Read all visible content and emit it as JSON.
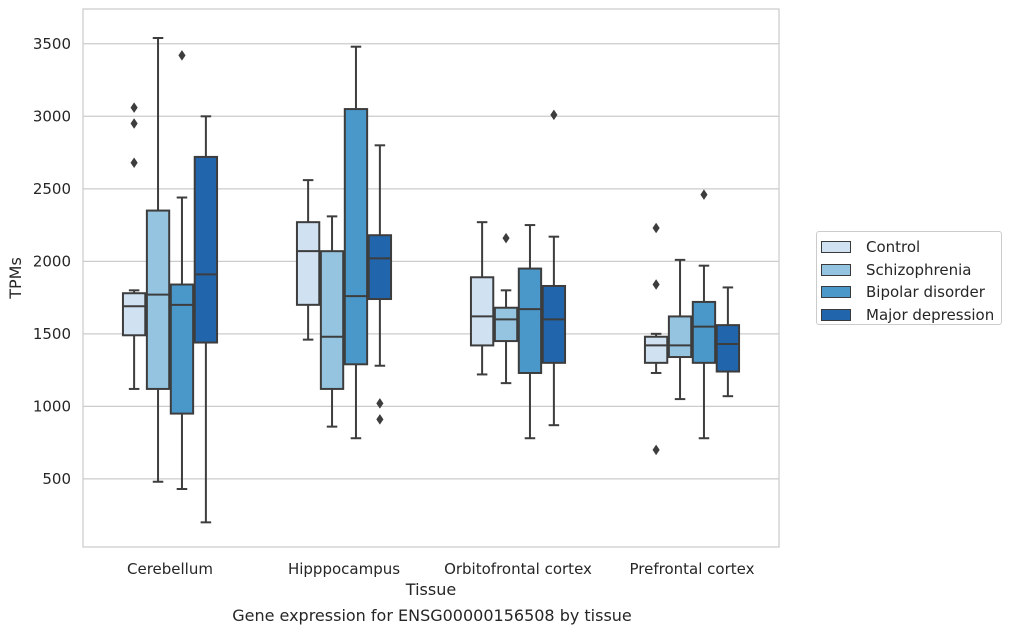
{
  "caption": "Gene expression for ENSG00000156508 by tissue",
  "chart_data": {
    "type": "boxplot",
    "xlabel": "Tissue",
    "ylabel": "TPMs",
    "ylim": [
      30,
      3740
    ],
    "yticks": [
      500,
      1000,
      1500,
      2000,
      2500,
      3000,
      3500
    ],
    "grid": "horizontal",
    "legend_position": "right-outside",
    "categories": [
      "Cerebellum",
      "Hipppocampus",
      "Orbitofrontal cortex",
      "Prefrontal cortex"
    ],
    "series": [
      {
        "name": "Control",
        "color": "#d0e1f2",
        "boxes": [
          {
            "whislo": 1120,
            "q1": 1490,
            "med": 1690,
            "q3": 1780,
            "whishi": 1800,
            "fliers": [
              2680,
              2950,
              3060
            ]
          },
          {
            "whislo": 1460,
            "q1": 1700,
            "med": 2070,
            "q3": 2270,
            "whishi": 2560,
            "fliers": []
          },
          {
            "whislo": 1220,
            "q1": 1420,
            "med": 1620,
            "q3": 1890,
            "whishi": 2270,
            "fliers": []
          },
          {
            "whislo": 1230,
            "q1": 1300,
            "med": 1420,
            "q3": 1480,
            "whishi": 1500,
            "fliers": [
              700,
              1840,
              2230
            ]
          }
        ]
      },
      {
        "name": "Schizophrenia",
        "color": "#94c4df",
        "boxes": [
          {
            "whislo": 480,
            "q1": 1120,
            "med": 1770,
            "q3": 2350,
            "whishi": 3540,
            "fliers": []
          },
          {
            "whislo": 860,
            "q1": 1120,
            "med": 1480,
            "q3": 2070,
            "whishi": 2310,
            "fliers": []
          },
          {
            "whislo": 1160,
            "q1": 1450,
            "med": 1600,
            "q3": 1680,
            "whishi": 1800,
            "fliers": [
              2160
            ]
          },
          {
            "whislo": 1050,
            "q1": 1340,
            "med": 1420,
            "q3": 1620,
            "whishi": 2010,
            "fliers": []
          }
        ]
      },
      {
        "name": "Bipolar disorder",
        "color": "#4a98c9",
        "boxes": [
          {
            "whislo": 430,
            "q1": 950,
            "med": 1700,
            "q3": 1840,
            "whishi": 2440,
            "fliers": [
              3420
            ]
          },
          {
            "whislo": 780,
            "q1": 1290,
            "med": 1760,
            "q3": 3050,
            "whishi": 3480,
            "fliers": []
          },
          {
            "whislo": 780,
            "q1": 1230,
            "med": 1670,
            "q3": 1950,
            "whishi": 2250,
            "fliers": []
          },
          {
            "whislo": 780,
            "q1": 1300,
            "med": 1550,
            "q3": 1720,
            "whishi": 1970,
            "fliers": [
              2460
            ]
          }
        ]
      },
      {
        "name": "Major depression",
        "color": "#2166ac",
        "boxes": [
          {
            "whislo": 200,
            "q1": 1440,
            "med": 1910,
            "q3": 2720,
            "whishi": 3000,
            "fliers": []
          },
          {
            "whislo": 1280,
            "q1": 1740,
            "med": 2020,
            "q3": 2180,
            "whishi": 2800,
            "fliers": [
              910,
              1020
            ]
          },
          {
            "whislo": 870,
            "q1": 1300,
            "med": 1600,
            "q3": 1830,
            "whishi": 2170,
            "fliers": [
              3010
            ]
          },
          {
            "whislo": 1070,
            "q1": 1240,
            "med": 1430,
            "q3": 1560,
            "whishi": 1820,
            "fliers": []
          }
        ]
      }
    ]
  }
}
